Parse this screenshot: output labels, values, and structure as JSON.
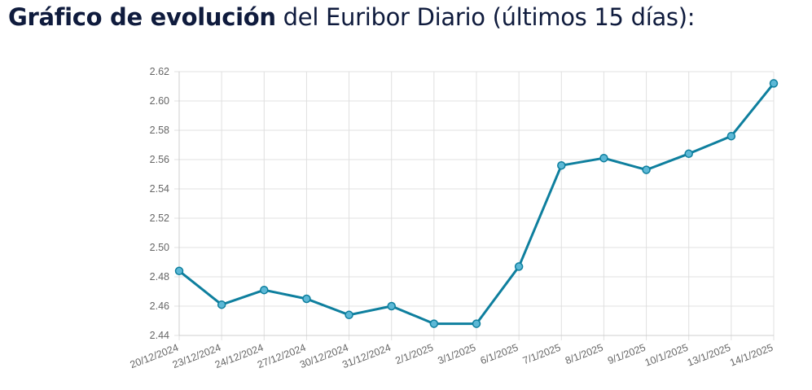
{
  "header": {
    "title_bold": "Gráfico de evolución",
    "title_rest": " del Euribor Diario (últimos 15 días):"
  },
  "chart_data": {
    "type": "line",
    "title": "",
    "xlabel": "",
    "ylabel": "",
    "categories": [
      "20/12/2024",
      "23/12/2024",
      "24/12/2024",
      "27/12/2024",
      "30/12/2024",
      "31/12/2024",
      "2/1/2025",
      "3/1/2025",
      "6/1/2025",
      "7/1/2025",
      "8/1/2025",
      "9/1/2025",
      "10/1/2025",
      "13/1/2025",
      "14/1/2025"
    ],
    "series": [
      {
        "values": [
          2.484,
          2.461,
          2.471,
          2.465,
          2.454,
          2.46,
          2.448,
          2.448,
          2.487,
          2.556,
          2.561,
          2.553,
          2.564,
          2.576,
          2.612
        ]
      }
    ],
    "ylim": [
      2.44,
      2.62
    ],
    "yticks": [
      "2.44",
      "2.46",
      "2.48",
      "2.50",
      "2.52",
      "2.54",
      "2.56",
      "2.58",
      "2.60",
      "2.62"
    ],
    "grid": true,
    "legend": "none",
    "colors": {
      "line": "#0e7f9e",
      "point_fill": "#5cb8d6",
      "grid": "#e0e0e0",
      "text": "#666666"
    }
  }
}
